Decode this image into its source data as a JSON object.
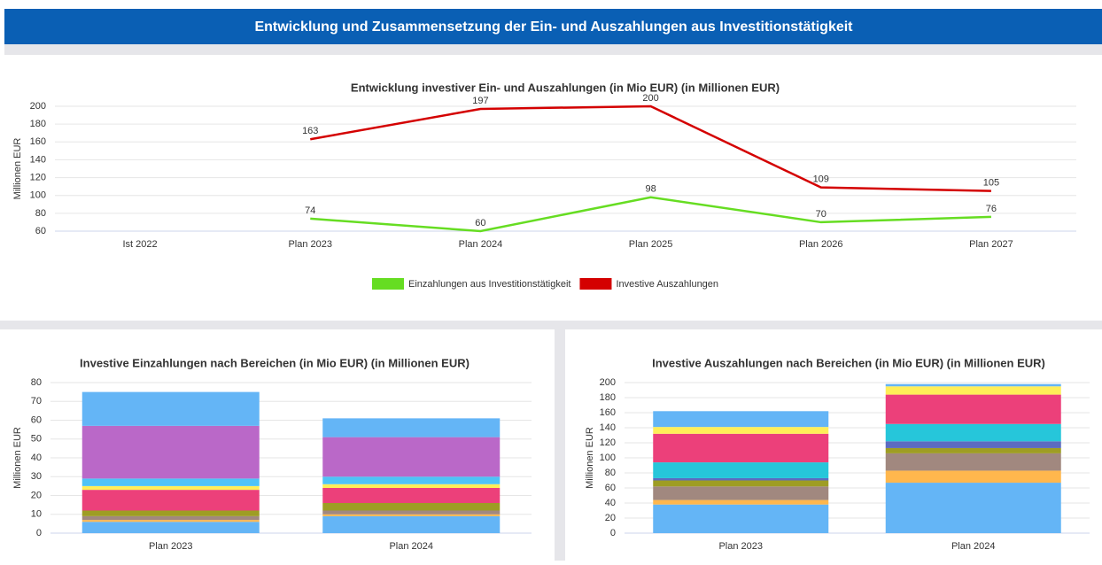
{
  "header": {
    "title": "Entwicklung und Zusammensetzung der Ein- und Auszahlungen aus Investitionstätigkeit"
  },
  "chart_data": [
    {
      "type": "line",
      "title": "Entwicklung investiver Ein- und Auszahlungen (in Mio EUR) (in Millionen EUR)",
      "y_label": "Millionen EUR",
      "categories": [
        "Ist 2022",
        "Plan 2023",
        "Plan 2024",
        "Plan 2025",
        "Plan 2026",
        "Plan 2027"
      ],
      "series": [
        {
          "name": "Einzahlungen aus Investitionstätigkeit",
          "color": "#66dd22",
          "values": [
            null,
            74,
            60,
            98,
            70,
            76
          ]
        },
        {
          "name": "Investive Auszahlungen",
          "color": "#d40000",
          "values": [
            null,
            163,
            197,
            200,
            109,
            105
          ]
        }
      ],
      "ylim": [
        60,
        200
      ],
      "yticks": [
        60,
        80,
        100,
        120,
        140,
        160,
        180,
        200
      ],
      "grid": true,
      "legend": "bottom",
      "data_labels": true
    },
    {
      "type": "bar",
      "stacked": true,
      "title": "Investive Einzahlungen nach Bereichen (in Mio EUR) (in Millionen EUR)",
      "y_label": "Millionen EUR",
      "categories": [
        "Plan 2023",
        "Plan 2024"
      ],
      "series": [
        {
          "color": "#64b5f6",
          "values": [
            6,
            9
          ]
        },
        {
          "color": "#ffb74d",
          "values": [
            1,
            1
          ]
        },
        {
          "color": "#a1887f",
          "values": [
            2,
            2
          ]
        },
        {
          "color": "#9e9d24",
          "values": [
            3,
            4
          ]
        },
        {
          "color": "#ec407a",
          "values": [
            11,
            8
          ]
        },
        {
          "color": "#ffee58",
          "values": [
            2,
            2
          ]
        },
        {
          "color": "#4fc3f7",
          "values": [
            4,
            4
          ]
        },
        {
          "color": "#ba68c8",
          "values": [
            28,
            21
          ]
        },
        {
          "color": "#64b5f6",
          "values": [
            18,
            10
          ]
        }
      ],
      "ylim": [
        0,
        80
      ],
      "yticks": [
        0,
        10,
        20,
        30,
        40,
        50,
        60,
        70,
        80
      ],
      "grid": true
    },
    {
      "type": "bar",
      "stacked": true,
      "title": "Investive Auszahlungen nach Bereichen (in Mio EUR) (in Millionen EUR)",
      "y_label": "Millionen EUR",
      "categories": [
        "Plan 2023",
        "Plan 2024"
      ],
      "series": [
        {
          "color": "#64b5f6",
          "values": [
            38,
            67
          ]
        },
        {
          "color": "#ffb74d",
          "values": [
            6,
            16
          ]
        },
        {
          "color": "#a1887f",
          "values": [
            18,
            23
          ]
        },
        {
          "color": "#9e9d24",
          "values": [
            8,
            7
          ]
        },
        {
          "color": "#5c6bc0",
          "values": [
            3,
            9
          ]
        },
        {
          "color": "#26c6da",
          "values": [
            21,
            23
          ]
        },
        {
          "color": "#ec407a",
          "values": [
            38,
            39
          ]
        },
        {
          "color": "#ffee58",
          "values": [
            9,
            11
          ]
        },
        {
          "color": "#64b5f6",
          "values": [
            21,
            3
          ]
        }
      ],
      "ylim": [
        0,
        200
      ],
      "yticks": [
        0,
        20,
        40,
        60,
        80,
        100,
        120,
        140,
        160,
        180,
        200
      ],
      "grid": true
    }
  ]
}
